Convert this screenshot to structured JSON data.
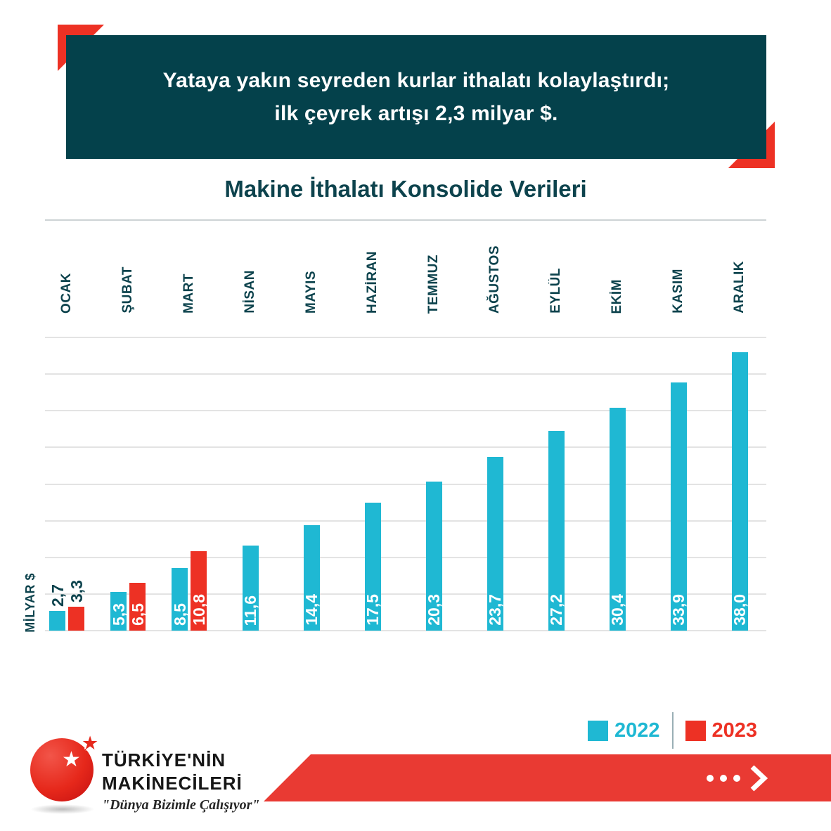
{
  "header": {
    "line1": "Yataya yakın seyreden kurlar ithalatı kolaylaştırdı;",
    "line2": "ilk çeyrek artışı 2,3 milyar $."
  },
  "chart_data": {
    "type": "bar",
    "title": "Makine İthalatı Konsolide Verileri",
    "ylabel": "MİLYAR $",
    "ylim": [
      0,
      40
    ],
    "gridline_step": 5,
    "grid": true,
    "legend_position": "bottom-right",
    "categories": [
      "OCAK",
      "ŞUBAT",
      "MART",
      "NİSAN",
      "MAYIS",
      "HAZİRAN",
      "TEMMUZ",
      "AĞUSTOS",
      "EYLÜL",
      "EKİM",
      "KASIM",
      "ARALIK"
    ],
    "series": [
      {
        "name": "2022",
        "color": "#1FB8D3",
        "values": [
          2.7,
          5.3,
          8.5,
          11.6,
          14.4,
          17.5,
          20.3,
          23.7,
          27.2,
          30.4,
          33.9,
          38.0
        ],
        "labels": [
          "2,7",
          "5,3",
          "8,5",
          "11,6",
          "14,4",
          "17,5",
          "20,3",
          "23,7",
          "27,2",
          "30,4",
          "33,9",
          "38,0"
        ]
      },
      {
        "name": "2023",
        "color": "#ED3124",
        "values": [
          3.3,
          6.5,
          10.8,
          null,
          null,
          null,
          null,
          null,
          null,
          null,
          null,
          null
        ],
        "labels": [
          "3,3",
          "6,5",
          "10,8",
          "",
          "",
          "",
          "",
          "",
          "",
          "",
          "",
          ""
        ]
      }
    ]
  },
  "legend": {
    "items": [
      {
        "label": "2022",
        "color": "#1FB8D3"
      },
      {
        "label": "2023",
        "color": "#ED3124"
      }
    ]
  },
  "footer": {
    "brand_line1": "TÜRKİYE'NİN",
    "brand_line2": "MAKİNECİLERİ",
    "brand_tagline": "\"Dünya Bizimle Çalışıyor\"",
    "more_icon": "ellipsis-chevron-right",
    "banner_color": "#E93A33"
  },
  "icons": {
    "logo_star": "★"
  },
  "colors": {
    "header_bg": "#04414B",
    "accent_red": "#ED3124",
    "series_2022": "#1FB8D3",
    "series_2023": "#ED3124",
    "dark_teal_text": "#0D434D",
    "gridline": "#E3E3E3"
  }
}
